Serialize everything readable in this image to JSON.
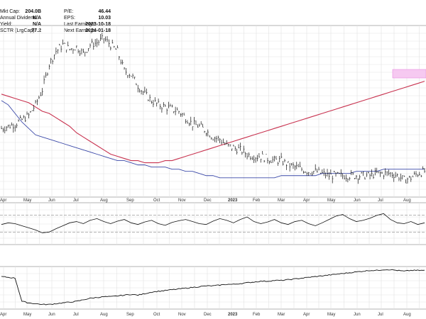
{
  "info": {
    "col1": [
      {
        "label": "Mkt Cap:",
        "value": "204.0B"
      },
      {
        "label": "Annual Dividend:",
        "value": "N/A"
      },
      {
        "label": "Yield:",
        "value": "N/A"
      },
      {
        "label": "SCTR (LrgCap):",
        "value": "77.2"
      }
    ],
    "col2": [
      {
        "label": "P/E:",
        "value": "46.44"
      },
      {
        "label": "EPS:",
        "value": "10.03"
      },
      {
        "label": "Last Earnings:",
        "value": "2023-10-18"
      },
      {
        "label": "Next Earnings:",
        "value": "2024-01-18"
      }
    ]
  },
  "chart_data": {
    "type": "line",
    "x_axis_labels": [
      "Apr",
      "May",
      "Jun",
      "Jul",
      "Aug",
      "Sep",
      "Oct",
      "Nov",
      "Dec",
      "2023",
      "Feb",
      "Mar",
      "Apr",
      "May",
      "Jun",
      "Jul",
      "Aug"
    ],
    "bold_labels": [
      "2023"
    ],
    "grid": true,
    "price": {
      "series_type": "ohlc-bars",
      "close": [
        92,
        93,
        94,
        96,
        98,
        103,
        110,
        122,
        128,
        131,
        129,
        130,
        127,
        131,
        132,
        134,
        131,
        128,
        119,
        117,
        112,
        108,
        105,
        103,
        102,
        101,
        100,
        97,
        94,
        93,
        91,
        88,
        87,
        84,
        83,
        82,
        80,
        79,
        79,
        78,
        77,
        77,
        75,
        74,
        73,
        72,
        72,
        71,
        70,
        70,
        70,
        70,
        70,
        70,
        70,
        71,
        71,
        71,
        70,
        68,
        69,
        71,
        72
      ],
      "ma50": [
        105,
        103,
        99,
        95,
        92,
        89,
        88,
        87,
        86,
        85,
        84,
        83,
        82,
        81,
        80,
        79,
        78,
        77,
        77,
        76,
        75,
        75,
        74,
        74,
        74,
        73,
        73,
        72,
        72,
        71,
        70,
        70,
        69,
        69,
        69,
        69,
        69,
        69,
        69,
        69,
        69,
        70,
        70,
        70,
        70,
        70,
        70,
        71,
        71,
        71,
        71,
        71,
        72,
        72,
        72,
        72,
        73,
        73,
        73,
        73,
        73,
        73,
        73
      ],
      "ma200": [
        108,
        107,
        106,
        105,
        104,
        102,
        100,
        99,
        97,
        95,
        93,
        90,
        88,
        86,
        84,
        82,
        80,
        79,
        78,
        77,
        77,
        76,
        76,
        76,
        77,
        77,
        78,
        79,
        80,
        81,
        82,
        83,
        84,
        85,
        86,
        87,
        88,
        89,
        90,
        91,
        92,
        93,
        94,
        95,
        96,
        97,
        98,
        99,
        100,
        101,
        102,
        103,
        104,
        105,
        106,
        107,
        108,
        109,
        110,
        111,
        112,
        113,
        114
      ],
      "resistance_zone": {
        "from": 1.0,
        "to": 1.5
      }
    },
    "rsi": {
      "upper": 70,
      "lower": 30,
      "values": [
        48,
        52,
        50,
        45,
        40,
        35,
        28,
        30,
        38,
        45,
        52,
        55,
        50,
        58,
        62,
        55,
        50,
        56,
        60,
        52,
        48,
        54,
        58,
        50,
        46,
        53,
        57,
        60,
        55,
        50,
        48,
        56,
        62,
        58,
        52,
        60,
        66,
        55,
        50,
        54,
        60,
        52,
        48,
        55,
        58,
        50,
        45,
        52,
        60,
        68,
        72,
        62,
        55,
        58,
        63,
        70,
        74,
        60,
        52,
        50,
        55,
        48,
        52
      ]
    },
    "relative_line": {
      "values": [
        0.92,
        0.91,
        0.9,
        0.6,
        0.58,
        0.57,
        0.56,
        0.56,
        0.57,
        0.58,
        0.59,
        0.6,
        0.62,
        0.64,
        0.65,
        0.66,
        0.66,
        0.67,
        0.68,
        0.69,
        0.68,
        0.7,
        0.72,
        0.73,
        0.74,
        0.75,
        0.76,
        0.77,
        0.78,
        0.79,
        0.8,
        0.8,
        0.81,
        0.82,
        0.82,
        0.83,
        0.84,
        0.85,
        0.86,
        0.86,
        0.87,
        0.87,
        0.88,
        0.89,
        0.9,
        0.91,
        0.92,
        0.93,
        0.94,
        0.95,
        0.96,
        0.97,
        0.98,
        0.99,
        1.0,
        1.0,
        1.01,
        1.01,
        1.0,
        0.99,
        1.0,
        1.0,
        1.0
      ]
    }
  }
}
